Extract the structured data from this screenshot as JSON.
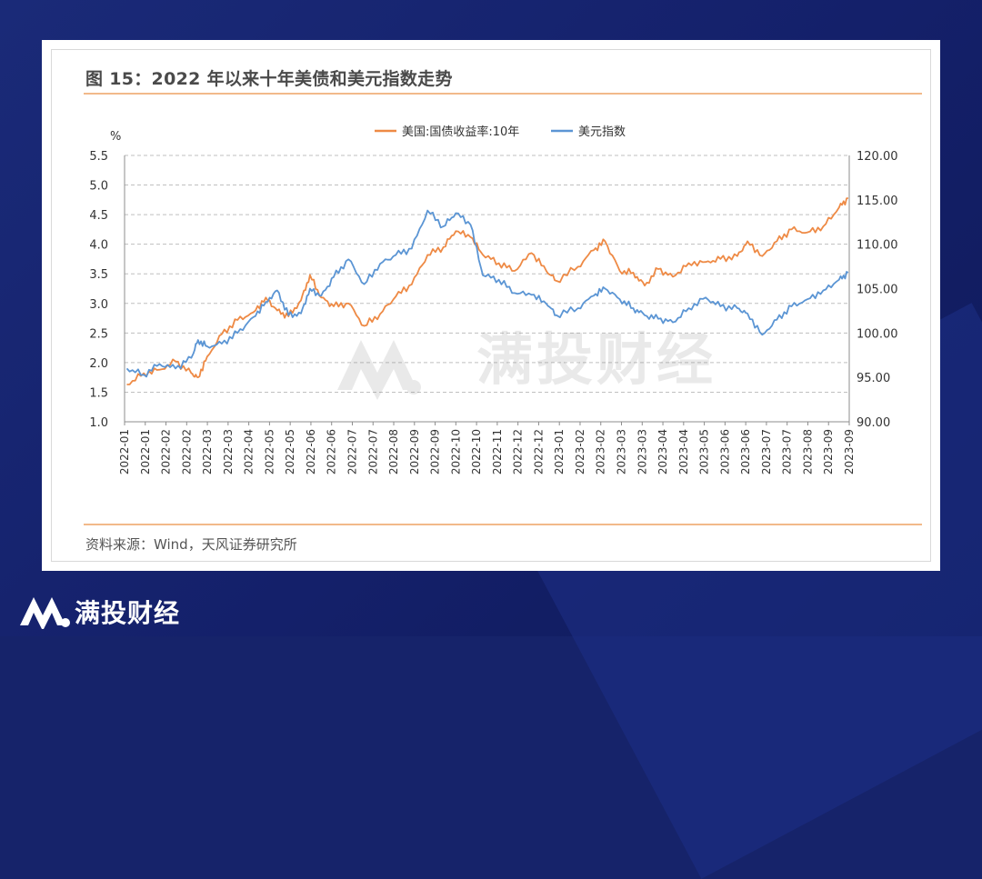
{
  "title": "图 15：2022 年以来十年美债和美元指数走势",
  "source": "资料来源：Wind，天风证券研究所",
  "watermark": "满投财经",
  "brand": {
    "name": "满投财经"
  },
  "colors": {
    "yield": "#ee8a45",
    "dollar": "#5b95d4",
    "background": "#16236a"
  },
  "chart_data": {
    "type": "line",
    "left_axis_unit": "%",
    "y_left": {
      "min": 1.0,
      "max": 5.5,
      "ticks": [
        "1.0",
        "1.5",
        "2.0",
        "2.5",
        "3.0",
        "3.5",
        "4.0",
        "4.5",
        "5.0",
        "5.5"
      ]
    },
    "y_right": {
      "min": 90,
      "max": 120,
      "ticks": [
        "90.00",
        "95.00",
        "100.00",
        "105.00",
        "110.00",
        "115.00",
        "120.00"
      ]
    },
    "x_ticks": [
      "2022-01",
      "2022-01",
      "2022-02",
      "2022-02",
      "2022-03",
      "2022-03",
      "2022-04",
      "2022-05",
      "2022-05",
      "2022-06",
      "2022-06",
      "2022-07",
      "2022-07",
      "2022-08",
      "2022-09",
      "2022-09",
      "2022-10",
      "2022-10",
      "2022-11",
      "2022-12",
      "2022-12",
      "2023-01",
      "2023-02",
      "2023-02",
      "2023-03",
      "2023-03",
      "2023-04",
      "2023-04",
      "2023-05",
      "2023-06",
      "2023-06",
      "2023-07",
      "2023-07",
      "2023-08",
      "2023-09",
      "2023-09"
    ],
    "grid": "horizontal dashed",
    "legend_position": "top",
    "series": [
      {
        "name": "美国:国债收益率:10年",
        "axis": "left",
        "x": [
          "2022-01-03",
          "2022-01-18",
          "2022-02-01",
          "2022-02-15",
          "2022-03-01",
          "2022-03-07",
          "2022-03-15",
          "2022-03-28",
          "2022-04-11",
          "2022-04-25",
          "2022-05-06",
          "2022-05-16",
          "2022-05-26",
          "2022-06-06",
          "2022-06-14",
          "2022-06-24",
          "2022-07-05",
          "2022-07-18",
          "2022-08-01",
          "2022-08-15",
          "2022-08-29",
          "2022-09-12",
          "2022-09-26",
          "2022-10-10",
          "2022-10-21",
          "2022-11-03",
          "2022-11-14",
          "2022-11-28",
          "2022-12-12",
          "2022-12-27",
          "2023-01-09",
          "2023-01-18",
          "2023-02-06",
          "2023-02-20",
          "2023-03-02",
          "2023-03-15",
          "2023-03-27",
          "2023-04-06",
          "2023-04-18",
          "2023-05-01",
          "2023-05-15",
          "2023-05-30",
          "2023-06-12",
          "2023-06-27",
          "2023-07-06",
          "2023-07-19",
          "2023-08-01",
          "2023-08-14",
          "2023-08-28",
          "2023-09-11",
          "2023-09-25",
          "2023-10-03"
        ],
        "values": [
          1.63,
          1.82,
          1.88,
          2.02,
          1.82,
          1.75,
          2.1,
          2.48,
          2.72,
          2.85,
          3.1,
          2.88,
          2.78,
          3.05,
          3.48,
          3.1,
          2.95,
          3.0,
          2.62,
          2.82,
          3.12,
          3.32,
          3.82,
          3.95,
          4.22,
          4.12,
          3.82,
          3.68,
          3.55,
          3.85,
          3.55,
          3.38,
          3.62,
          3.9,
          4.05,
          3.55,
          3.52,
          3.3,
          3.58,
          3.45,
          3.68,
          3.7,
          3.75,
          3.8,
          4.05,
          3.8,
          4.05,
          4.25,
          4.2,
          4.3,
          4.62,
          4.78
        ]
      },
      {
        "name": "美元指数",
        "axis": "right",
        "x": [
          "2022-01-03",
          "2022-01-18",
          "2022-02-01",
          "2022-02-15",
          "2022-03-01",
          "2022-03-07",
          "2022-03-15",
          "2022-03-28",
          "2022-04-11",
          "2022-04-25",
          "2022-05-06",
          "2022-05-16",
          "2022-05-26",
          "2022-06-06",
          "2022-06-14",
          "2022-06-24",
          "2022-07-05",
          "2022-07-18",
          "2022-08-01",
          "2022-08-15",
          "2022-08-29",
          "2022-09-12",
          "2022-09-26",
          "2022-10-10",
          "2022-10-21",
          "2022-11-03",
          "2022-11-14",
          "2022-11-28",
          "2022-12-12",
          "2022-12-27",
          "2023-01-09",
          "2023-01-18",
          "2023-02-06",
          "2023-02-20",
          "2023-03-02",
          "2023-03-15",
          "2023-03-27",
          "2023-04-06",
          "2023-04-18",
          "2023-05-01",
          "2023-05-15",
          "2023-05-30",
          "2023-06-12",
          "2023-06-27",
          "2023-07-06",
          "2023-07-19",
          "2023-08-01",
          "2023-08-14",
          "2023-08-28",
          "2023-09-11",
          "2023-09-25",
          "2023-10-03"
        ],
        "values": [
          96.0,
          95.3,
          96.5,
          96.0,
          97.2,
          99.2,
          98.5,
          98.8,
          100.0,
          101.8,
          103.5,
          104.8,
          102.0,
          102.2,
          105.0,
          104.2,
          106.3,
          108.3,
          105.5,
          107.8,
          108.8,
          109.5,
          113.8,
          112.0,
          113.5,
          112.2,
          106.5,
          106.0,
          104.5,
          104.3,
          103.3,
          102.0,
          102.8,
          104.2,
          105.0,
          103.8,
          102.8,
          102.0,
          101.6,
          101.2,
          102.8,
          104.0,
          103.0,
          102.8,
          102.2,
          99.8,
          101.5,
          103.0,
          103.8,
          104.8,
          106.0,
          106.8
        ]
      }
    ]
  }
}
